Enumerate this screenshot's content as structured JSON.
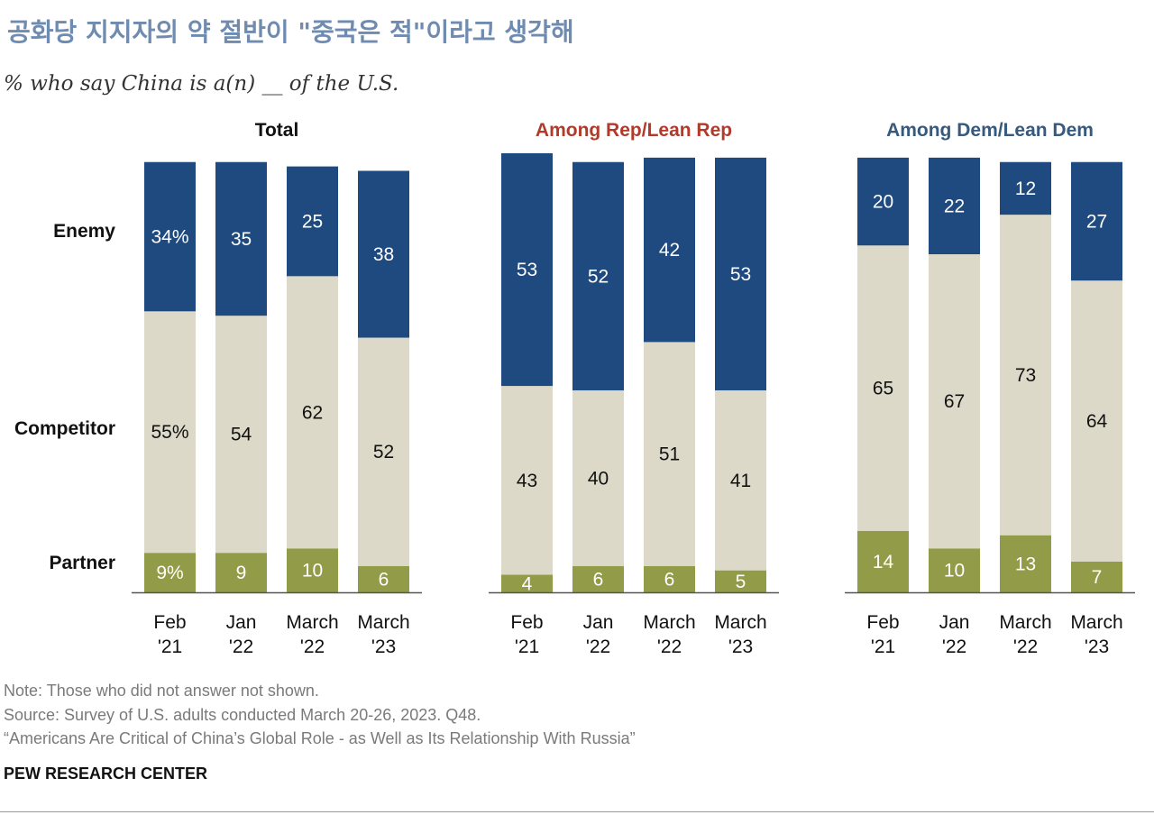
{
  "title": "공화당 지지자의 약 절반이 \"중국은 적\"이라고 생각해",
  "subtitle": "% who say China is a(n) __ of the U.S.",
  "notes": {
    "note": "Note: Those who did not answer not shown.",
    "source": "Source: Survey of U.S. adults conducted March 20-26, 2023. Q48.",
    "report": "“Americans Are Critical of China’s Global Role - as Well as Its Relationship With Russia”",
    "brand": "PEW RESEARCH CENTER"
  },
  "colors": {
    "enemy": "#1f4a7f",
    "competitor": "#dcd9c8",
    "partner": "#929b48",
    "title": "#6f8bb0",
    "rep_title": "#b23a2a",
    "dem_title": "#36597d"
  },
  "chart_data": {
    "type": "bar",
    "stacked": true,
    "orientation": "vertical",
    "ylim": [
      0,
      100
    ],
    "row_labels": [
      "Enemy",
      "Competitor",
      "Partner"
    ],
    "categories": [
      [
        "Feb",
        "'21"
      ],
      [
        "Jan",
        "'22"
      ],
      [
        "March",
        "'22"
      ],
      [
        "March",
        "'23"
      ]
    ],
    "panels": [
      {
        "title": "Total",
        "series": [
          {
            "name": "Enemy",
            "values": [
              34,
              35,
              25,
              38
            ],
            "labels": [
              "34%",
              "35",
              "25",
              "38"
            ]
          },
          {
            "name": "Competitor",
            "values": [
              55,
              54,
              62,
              52
            ],
            "labels": [
              "55%",
              "54",
              "62",
              "52"
            ]
          },
          {
            "name": "Partner",
            "values": [
              9,
              9,
              10,
              6
            ],
            "labels": [
              "9%",
              "9",
              "10",
              "6"
            ]
          }
        ]
      },
      {
        "title": "Among Rep/Lean Rep",
        "series": [
          {
            "name": "Enemy",
            "values": [
              53,
              52,
              42,
              53
            ],
            "labels": [
              "53",
              "52",
              "42",
              "53"
            ]
          },
          {
            "name": "Competitor",
            "values": [
              43,
              40,
              51,
              41
            ],
            "labels": [
              "43",
              "40",
              "51",
              "41"
            ]
          },
          {
            "name": "Partner",
            "values": [
              4,
              6,
              6,
              5
            ],
            "labels": [
              "4",
              "6",
              "6",
              "5"
            ]
          }
        ]
      },
      {
        "title": "Among Dem/Lean Dem",
        "series": [
          {
            "name": "Enemy",
            "values": [
              20,
              22,
              12,
              27
            ],
            "labels": [
              "20",
              "22",
              "12",
              "27"
            ]
          },
          {
            "name": "Competitor",
            "values": [
              65,
              67,
              73,
              64
            ],
            "labels": [
              "65",
              "67",
              "73",
              "64"
            ]
          },
          {
            "name": "Partner",
            "values": [
              14,
              10,
              13,
              7
            ],
            "labels": [
              "14",
              "10",
              "13",
              "7"
            ]
          }
        ]
      }
    ]
  }
}
